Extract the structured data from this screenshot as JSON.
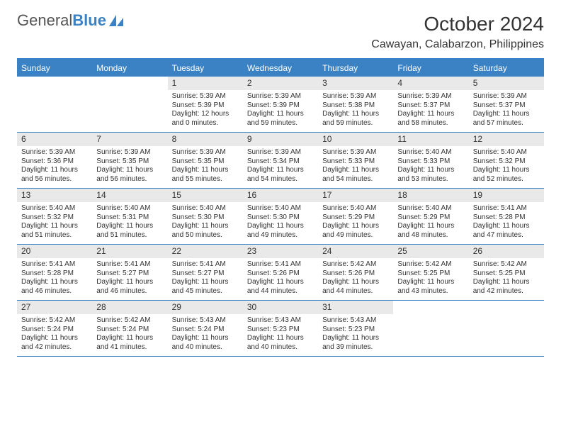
{
  "brand": {
    "part1": "General",
    "part2": "Blue"
  },
  "title": "October 2024",
  "location": "Cawayan, Calabarzon, Philippines",
  "colors": {
    "accent": "#3b82c4",
    "header_bg": "#3b82c4",
    "header_text": "#ffffff",
    "daynum_bg": "#e9e9e9",
    "text": "#333333",
    "background": "#ffffff"
  },
  "day_headers": [
    "Sunday",
    "Monday",
    "Tuesday",
    "Wednesday",
    "Thursday",
    "Friday",
    "Saturday"
  ],
  "weeks": [
    [
      null,
      null,
      {
        "n": "1",
        "sr": "Sunrise: 5:39 AM",
        "ss": "Sunset: 5:39 PM",
        "dl": "Daylight: 12 hours and 0 minutes."
      },
      {
        "n": "2",
        "sr": "Sunrise: 5:39 AM",
        "ss": "Sunset: 5:39 PM",
        "dl": "Daylight: 11 hours and 59 minutes."
      },
      {
        "n": "3",
        "sr": "Sunrise: 5:39 AM",
        "ss": "Sunset: 5:38 PM",
        "dl": "Daylight: 11 hours and 59 minutes."
      },
      {
        "n": "4",
        "sr": "Sunrise: 5:39 AM",
        "ss": "Sunset: 5:37 PM",
        "dl": "Daylight: 11 hours and 58 minutes."
      },
      {
        "n": "5",
        "sr": "Sunrise: 5:39 AM",
        "ss": "Sunset: 5:37 PM",
        "dl": "Daylight: 11 hours and 57 minutes."
      }
    ],
    [
      {
        "n": "6",
        "sr": "Sunrise: 5:39 AM",
        "ss": "Sunset: 5:36 PM",
        "dl": "Daylight: 11 hours and 56 minutes."
      },
      {
        "n": "7",
        "sr": "Sunrise: 5:39 AM",
        "ss": "Sunset: 5:35 PM",
        "dl": "Daylight: 11 hours and 56 minutes."
      },
      {
        "n": "8",
        "sr": "Sunrise: 5:39 AM",
        "ss": "Sunset: 5:35 PM",
        "dl": "Daylight: 11 hours and 55 minutes."
      },
      {
        "n": "9",
        "sr": "Sunrise: 5:39 AM",
        "ss": "Sunset: 5:34 PM",
        "dl": "Daylight: 11 hours and 54 minutes."
      },
      {
        "n": "10",
        "sr": "Sunrise: 5:39 AM",
        "ss": "Sunset: 5:33 PM",
        "dl": "Daylight: 11 hours and 54 minutes."
      },
      {
        "n": "11",
        "sr": "Sunrise: 5:40 AM",
        "ss": "Sunset: 5:33 PM",
        "dl": "Daylight: 11 hours and 53 minutes."
      },
      {
        "n": "12",
        "sr": "Sunrise: 5:40 AM",
        "ss": "Sunset: 5:32 PM",
        "dl": "Daylight: 11 hours and 52 minutes."
      }
    ],
    [
      {
        "n": "13",
        "sr": "Sunrise: 5:40 AM",
        "ss": "Sunset: 5:32 PM",
        "dl": "Daylight: 11 hours and 51 minutes."
      },
      {
        "n": "14",
        "sr": "Sunrise: 5:40 AM",
        "ss": "Sunset: 5:31 PM",
        "dl": "Daylight: 11 hours and 51 minutes."
      },
      {
        "n": "15",
        "sr": "Sunrise: 5:40 AM",
        "ss": "Sunset: 5:30 PM",
        "dl": "Daylight: 11 hours and 50 minutes."
      },
      {
        "n": "16",
        "sr": "Sunrise: 5:40 AM",
        "ss": "Sunset: 5:30 PM",
        "dl": "Daylight: 11 hours and 49 minutes."
      },
      {
        "n": "17",
        "sr": "Sunrise: 5:40 AM",
        "ss": "Sunset: 5:29 PM",
        "dl": "Daylight: 11 hours and 49 minutes."
      },
      {
        "n": "18",
        "sr": "Sunrise: 5:40 AM",
        "ss": "Sunset: 5:29 PM",
        "dl": "Daylight: 11 hours and 48 minutes."
      },
      {
        "n": "19",
        "sr": "Sunrise: 5:41 AM",
        "ss": "Sunset: 5:28 PM",
        "dl": "Daylight: 11 hours and 47 minutes."
      }
    ],
    [
      {
        "n": "20",
        "sr": "Sunrise: 5:41 AM",
        "ss": "Sunset: 5:28 PM",
        "dl": "Daylight: 11 hours and 46 minutes."
      },
      {
        "n": "21",
        "sr": "Sunrise: 5:41 AM",
        "ss": "Sunset: 5:27 PM",
        "dl": "Daylight: 11 hours and 46 minutes."
      },
      {
        "n": "22",
        "sr": "Sunrise: 5:41 AM",
        "ss": "Sunset: 5:27 PM",
        "dl": "Daylight: 11 hours and 45 minutes."
      },
      {
        "n": "23",
        "sr": "Sunrise: 5:41 AM",
        "ss": "Sunset: 5:26 PM",
        "dl": "Daylight: 11 hours and 44 minutes."
      },
      {
        "n": "24",
        "sr": "Sunrise: 5:42 AM",
        "ss": "Sunset: 5:26 PM",
        "dl": "Daylight: 11 hours and 44 minutes."
      },
      {
        "n": "25",
        "sr": "Sunrise: 5:42 AM",
        "ss": "Sunset: 5:25 PM",
        "dl": "Daylight: 11 hours and 43 minutes."
      },
      {
        "n": "26",
        "sr": "Sunrise: 5:42 AM",
        "ss": "Sunset: 5:25 PM",
        "dl": "Daylight: 11 hours and 42 minutes."
      }
    ],
    [
      {
        "n": "27",
        "sr": "Sunrise: 5:42 AM",
        "ss": "Sunset: 5:24 PM",
        "dl": "Daylight: 11 hours and 42 minutes."
      },
      {
        "n": "28",
        "sr": "Sunrise: 5:42 AM",
        "ss": "Sunset: 5:24 PM",
        "dl": "Daylight: 11 hours and 41 minutes."
      },
      {
        "n": "29",
        "sr": "Sunrise: 5:43 AM",
        "ss": "Sunset: 5:24 PM",
        "dl": "Daylight: 11 hours and 40 minutes."
      },
      {
        "n": "30",
        "sr": "Sunrise: 5:43 AM",
        "ss": "Sunset: 5:23 PM",
        "dl": "Daylight: 11 hours and 40 minutes."
      },
      {
        "n": "31",
        "sr": "Sunrise: 5:43 AM",
        "ss": "Sunset: 5:23 PM",
        "dl": "Daylight: 11 hours and 39 minutes."
      },
      null,
      null
    ]
  ]
}
